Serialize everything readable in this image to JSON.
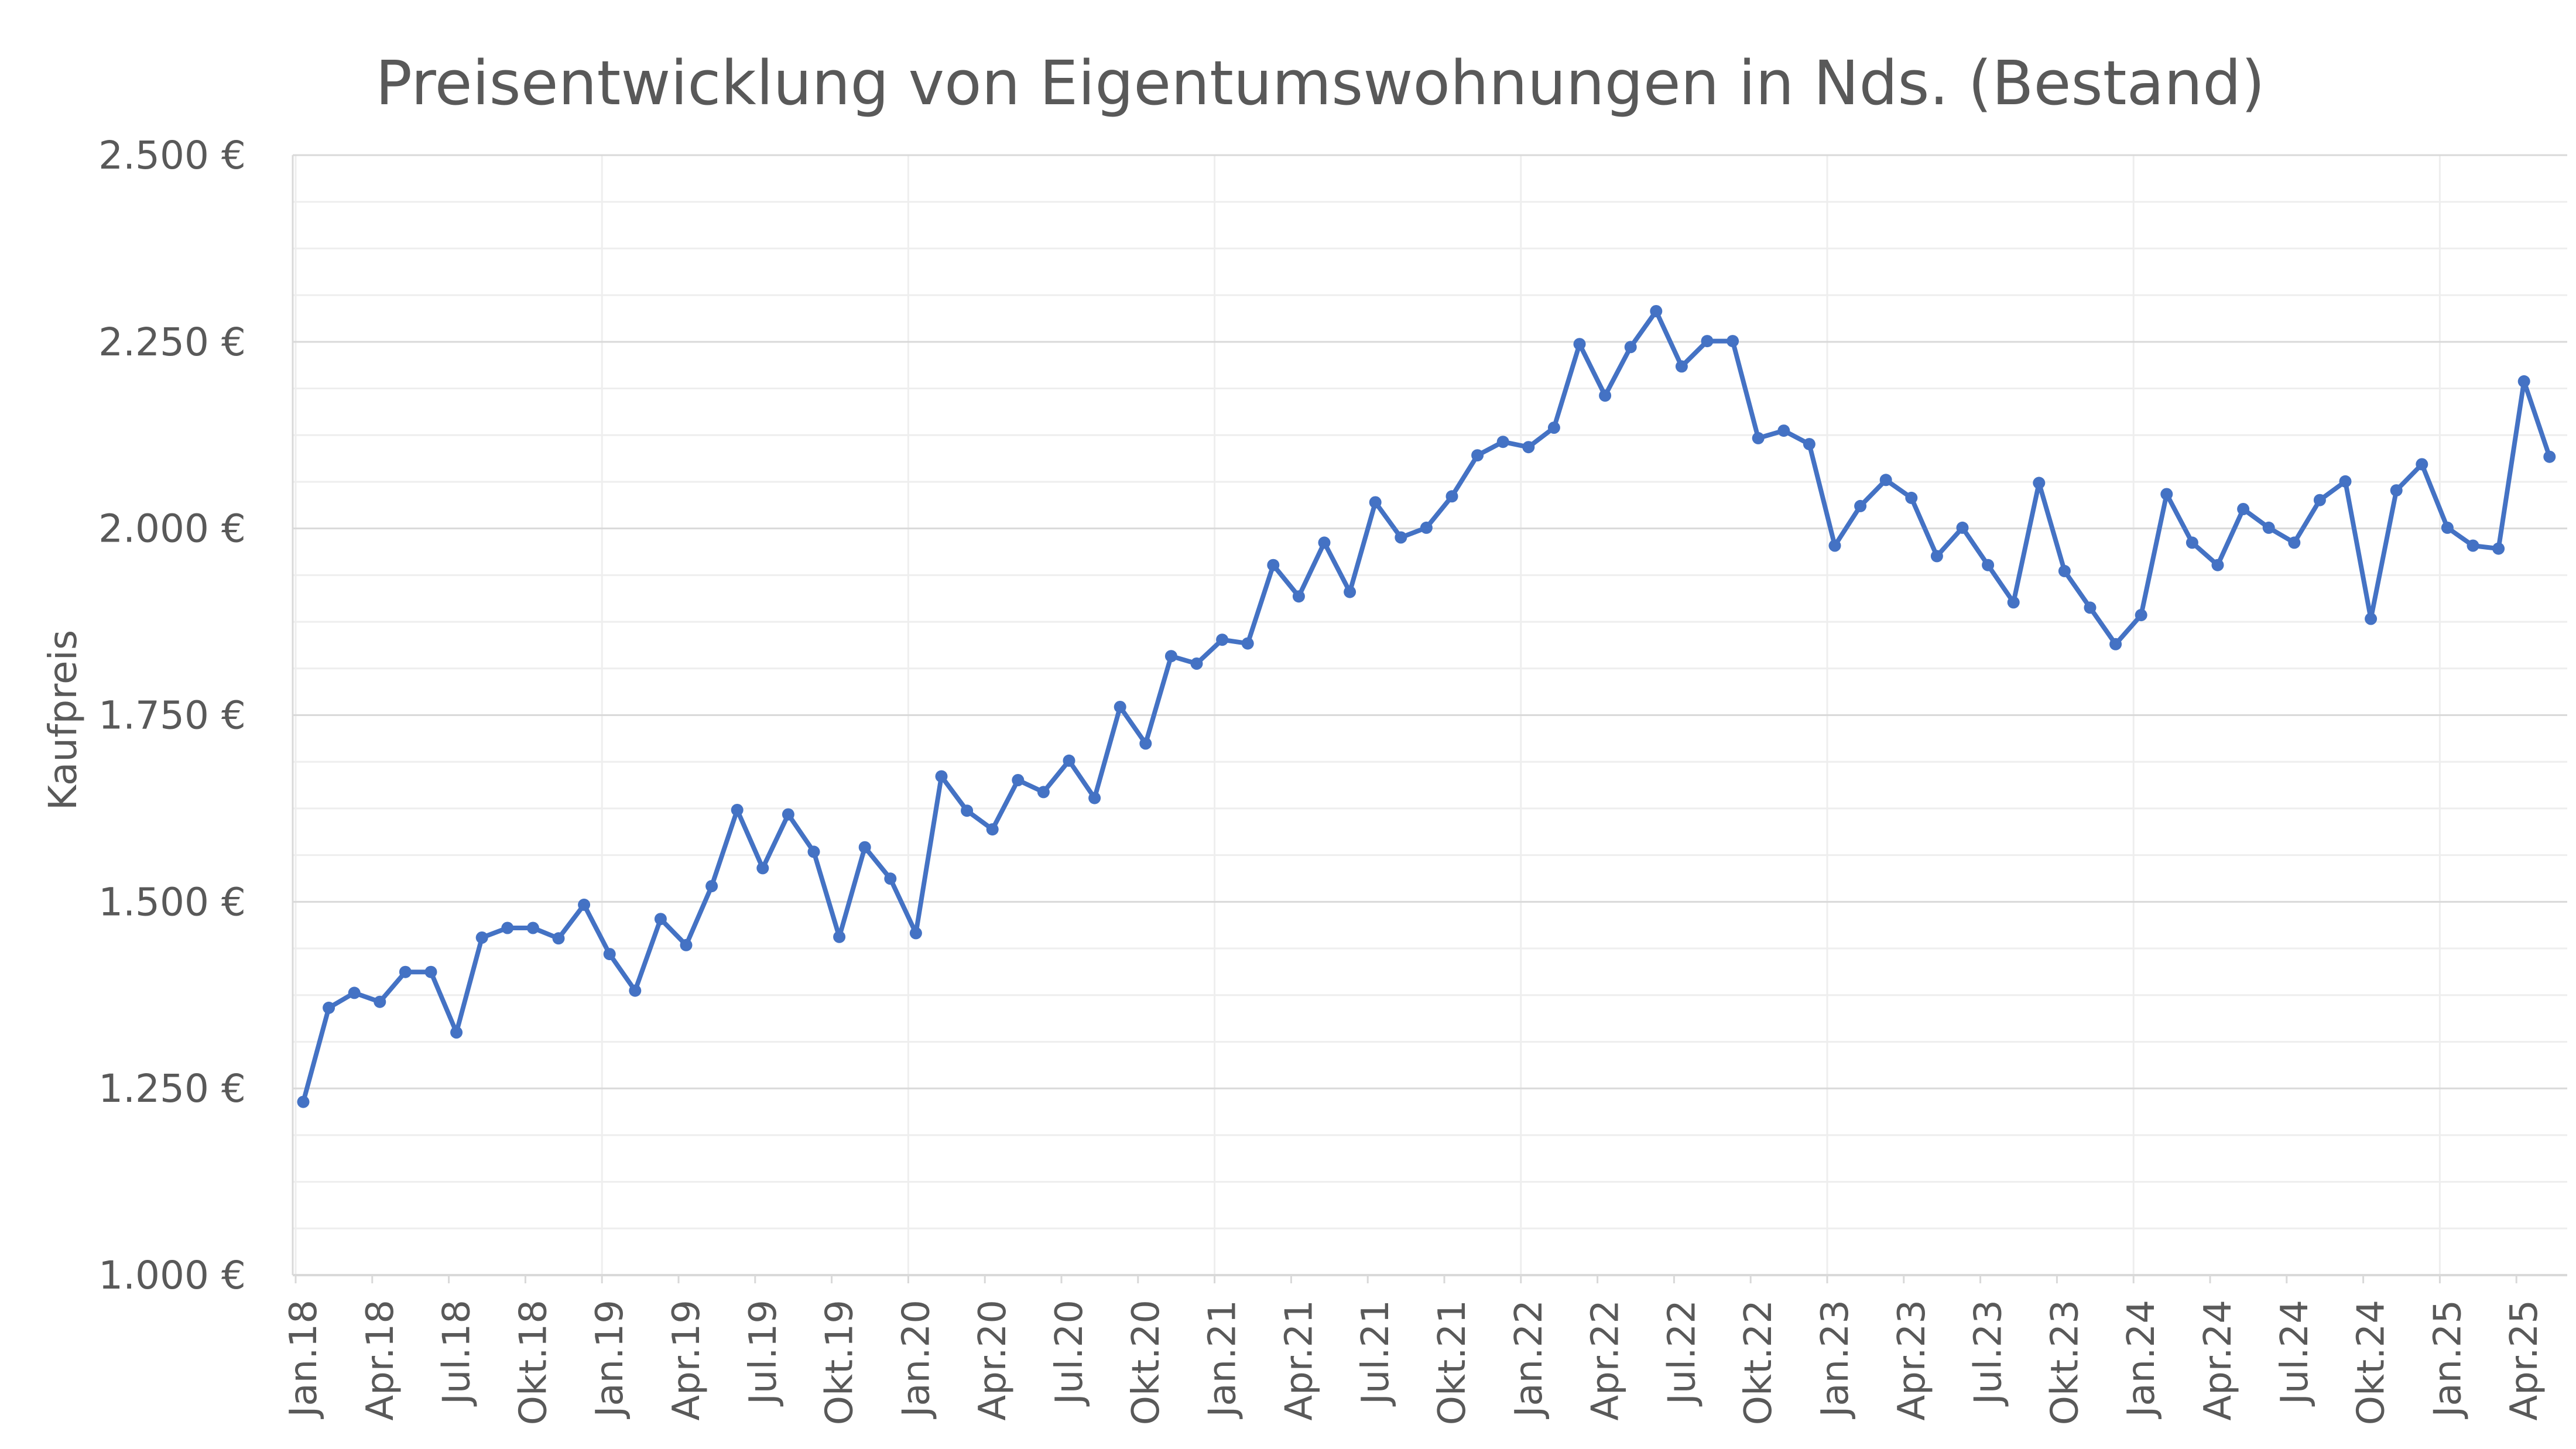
{
  "chart_data": {
    "type": "line",
    "title": "Preisentwicklung von Eigentumswohnungen in Nds. (Bestand)",
    "xlabel": "",
    "ylabel": "Kaufpreis",
    "ylim": [
      1000,
      2500
    ],
    "ytick_values": [
      1000,
      1250,
      1500,
      1750,
      2000,
      2250,
      2500
    ],
    "ytick_labels": [
      "1.000 €",
      "1.250 €",
      "1.500 €",
      "1.750 €",
      "2.000 €",
      "2.250 €",
      "2.500 €"
    ],
    "xtick_labels": [
      "Jan.18",
      "Apr.18",
      "Jul.18",
      "Okt.18",
      "Jan.19",
      "Apr.19",
      "Jul.19",
      "Okt.19",
      "Jan.20",
      "Apr.20",
      "Jul.20",
      "Okt.20",
      "Jan.21",
      "Apr.21",
      "Jul.21",
      "Okt.21",
      "Jan.22",
      "Apr.22",
      "Jul.22",
      "Okt.22",
      "Jan.23",
      "Apr.23",
      "Jul.23",
      "Okt.23",
      "Jan.24",
      "Apr.24",
      "Jul.24",
      "Okt.24",
      "Jan.25",
      "Apr.25"
    ],
    "grid": true,
    "legend": "none",
    "line_color": "#4472C4",
    "series": [
      {
        "values": [
          1232,
          1358,
          1378,
          1366,
          1406,
          1406,
          1325,
          1452,
          1465,
          1465,
          1451,
          1496,
          1430,
          1381,
          1477,
          1442,
          1521,
          1623,
          1545,
          1617,
          1567,
          1453,
          1573,
          1531,
          1458,
          1668,
          1622,
          1597,
          1663,
          1647,
          1689,
          1639,
          1761,
          1712,
          1829,
          1819,
          1851,
          1846,
          1951,
          1909,
          1981,
          1915,
          2035,
          1988,
          2001,
          2043,
          2098,
          2116,
          2109,
          2135,
          2247,
          2178,
          2243,
          2291,
          2217,
          2251,
          2251,
          2121,
          2131,
          2113,
          1977,
          2030,
          2065,
          2041,
          1963,
          2001,
          1951,
          1901,
          2061,
          1943,
          1894,
          1845,
          1884,
          2046,
          1981,
          1951,
          2026,
          2001,
          1981,
          2038,
          2063,
          1879,
          2051,
          2086,
          2001,
          1977,
          1973,
          2197,
          2096
        ]
      }
    ]
  }
}
